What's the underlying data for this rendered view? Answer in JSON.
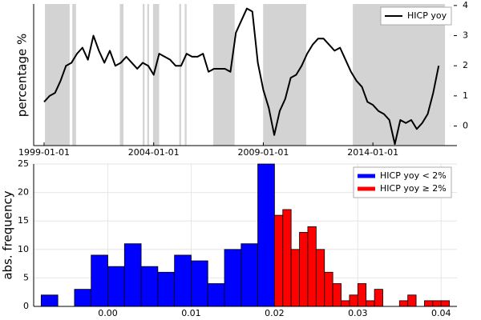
{
  "chart_data": [
    {
      "type": "line",
      "ylabel": "percentage %",
      "x": [
        "1999-01-01",
        "1999-04-01",
        "1999-07-01",
        "1999-10-01",
        "2000-01-01",
        "2000-04-01",
        "2000-07-01",
        "2000-10-01",
        "2001-01-01",
        "2001-04-01",
        "2001-07-01",
        "2001-10-01",
        "2002-01-01",
        "2002-04-01",
        "2002-07-01",
        "2002-10-01",
        "2003-01-01",
        "2003-04-01",
        "2003-07-01",
        "2003-10-01",
        "2004-01-01",
        "2004-04-01",
        "2004-07-01",
        "2004-10-01",
        "2005-01-01",
        "2005-04-01",
        "2005-07-01",
        "2005-10-01",
        "2006-01-01",
        "2006-04-01",
        "2006-07-01",
        "2006-10-01",
        "2007-01-01",
        "2007-04-01",
        "2007-07-01",
        "2007-10-01",
        "2008-01-01",
        "2008-04-01",
        "2008-07-01",
        "2008-10-01",
        "2009-01-01",
        "2009-04-01",
        "2009-07-01",
        "2009-10-01",
        "2010-01-01",
        "2010-04-01",
        "2010-07-01",
        "2010-10-01",
        "2011-01-01",
        "2011-04-01",
        "2011-07-01",
        "2011-10-01",
        "2012-01-01",
        "2012-04-01",
        "2012-07-01",
        "2012-10-01",
        "2013-01-01",
        "2013-04-01",
        "2013-07-01",
        "2013-10-01",
        "2014-01-01",
        "2014-04-01",
        "2014-07-01",
        "2014-10-01",
        "2015-01-01",
        "2015-04-01",
        "2015-07-01",
        "2015-10-01",
        "2016-01-01",
        "2016-04-01",
        "2016-07-01",
        "2016-10-01",
        "2017-01-01"
      ],
      "series": [
        {
          "name": "HICP yoy",
          "color": "#000000",
          "values": [
            0.8,
            1.0,
            1.1,
            1.5,
            2.0,
            2.1,
            2.4,
            2.6,
            2.2,
            3.0,
            2.5,
            2.1,
            2.5,
            2.0,
            2.1,
            2.3,
            2.1,
            1.9,
            2.1,
            2.0,
            1.7,
            2.4,
            2.3,
            2.2,
            2.0,
            2.0,
            2.4,
            2.3,
            2.3,
            2.4,
            1.8,
            1.9,
            1.9,
            1.9,
            1.8,
            3.1,
            3.5,
            3.9,
            3.8,
            2.1,
            1.2,
            0.6,
            -0.3,
            0.5,
            0.9,
            1.6,
            1.7,
            2.0,
            2.4,
            2.7,
            2.9,
            2.9,
            2.7,
            2.5,
            2.6,
            2.2,
            1.8,
            1.5,
            1.3,
            0.8,
            0.7,
            0.5,
            0.4,
            0.2,
            -0.6,
            0.2,
            0.1,
            0.2,
            -0.1,
            0.1,
            0.4,
            1.1,
            2.0
          ]
        }
      ],
      "shaded_spans": [
        [
          "1999-01-15",
          "2000-03-01"
        ],
        [
          "2000-04-15",
          "2000-06-15"
        ],
        [
          "2002-06-15",
          "2002-08-15"
        ],
        [
          "2003-07-01",
          "2003-08-01"
        ],
        [
          "2003-09-15",
          "2003-10-15"
        ],
        [
          "2003-12-20",
          "2004-04-01"
        ],
        [
          "2005-03-01",
          "2005-04-01"
        ],
        [
          "2005-06-01",
          "2005-07-01"
        ],
        [
          "2006-09-20",
          "2007-09-10"
        ],
        [
          "2008-12-28",
          "2010-12-15"
        ],
        [
          "2013-02-01",
          "2017-04-15"
        ]
      ],
      "xlim": [
        "1998-07-10",
        "2017-11-01"
      ],
      "xticks": [
        "1999-01-01",
        "2004-01-01",
        "2009-01-01",
        "2014-01-01"
      ],
      "ylim": [
        -0.65,
        4.05
      ],
      "yticks": [
        0,
        1,
        2,
        3,
        4
      ],
      "y_axis_side": "right",
      "legend": "top-right"
    },
    {
      "type": "histogram",
      "ylabel": "abs. frequency",
      "series": [
        {
          "name": "HICP yoy < 2%",
          "color": "#0000ff",
          "bins": [
            -0.008,
            -0.006,
            -0.004,
            -0.002,
            0,
            0.002,
            0.004,
            0.006,
            0.008,
            0.01,
            0.012,
            0.014,
            0.016,
            0.018,
            0.02
          ],
          "values": [
            2,
            0,
            3,
            9,
            7,
            11,
            7,
            6,
            9,
            8,
            4,
            10,
            11,
            25
          ]
        },
        {
          "name": "HICP yoy ≥ 2%",
          "color": "#ff0000",
          "bins": [
            0.02,
            0.021,
            0.022,
            0.023,
            0.024,
            0.025,
            0.026,
            0.027,
            0.028,
            0.029,
            0.03,
            0.031,
            0.032,
            0.033,
            0.034,
            0.035,
            0.036,
            0.037,
            0.038,
            0.039,
            0.04,
            0.041
          ],
          "values": [
            16,
            17,
            10,
            13,
            14,
            10,
            6,
            4,
            1,
            2,
            4,
            1,
            3,
            0,
            0,
            1,
            2,
            0,
            1,
            1,
            1
          ]
        }
      ],
      "xlim": [
        -0.0089,
        0.0419
      ],
      "xticks": [
        {
          "value": 0,
          "label": "0.00"
        },
        0.01,
        0.02,
        0.03,
        0.04
      ],
      "ylim": [
        0,
        25
      ],
      "yticks": [
        0,
        5,
        10,
        15,
        20,
        25
      ],
      "grid": true,
      "legend": "top-right"
    }
  ]
}
